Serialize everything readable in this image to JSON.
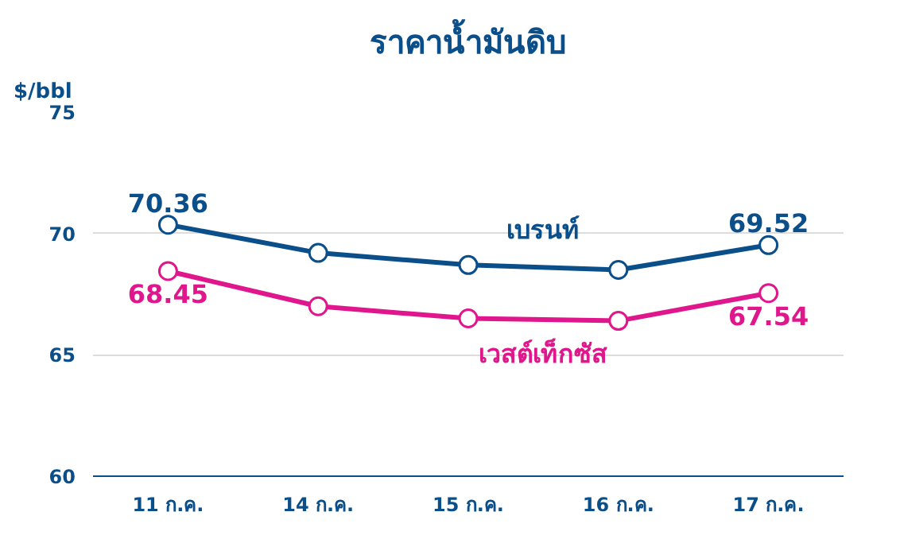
{
  "chart_data": {
    "type": "line",
    "title": "ราคาน้ำมันดิบ",
    "ylabel": "$/bbl",
    "categories": [
      "11 ก.ค.",
      "14 ก.ค.",
      "15 ก.ค.",
      "16 ก.ค.",
      "17 ก.ค."
    ],
    "series": [
      {
        "name": "เบรนท์",
        "color": "#0b4f8a",
        "values": [
          70.36,
          69.2,
          68.7,
          68.5,
          69.52
        ],
        "value_labels": [
          "70.36",
          null,
          null,
          null,
          "69.52"
        ]
      },
      {
        "name": "เวสต์เท็กซัส",
        "color": "#e0168c",
        "values": [
          68.45,
          67.0,
          66.5,
          66.4,
          67.54
        ],
        "value_labels": [
          "68.45",
          null,
          null,
          null,
          "67.54"
        ]
      }
    ],
    "ylim": [
      60,
      75
    ],
    "yticks": [
      60,
      65,
      70,
      75
    ],
    "grid": "y",
    "marker": "circle",
    "line_style": "solid"
  }
}
